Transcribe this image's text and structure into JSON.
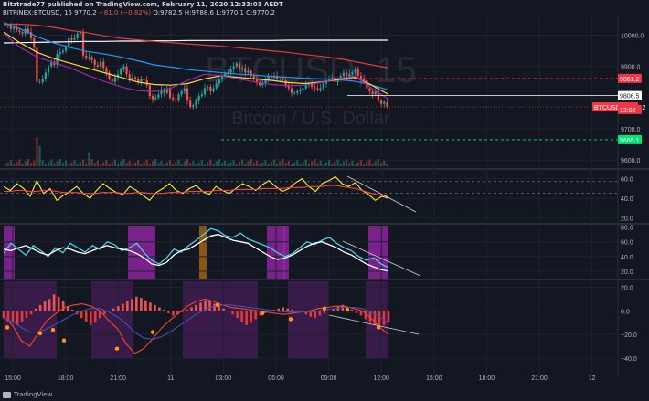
{
  "header": {
    "line1": "Bitztrade77 published on TradingView.com, February 11, 2020 12:33:01 AEDT",
    "symbol": "BITFINEX:BTCUSD",
    "interval": "15",
    "last": "9770.2",
    "change": "−81.0 (−0.82%)",
    "ohlc": "O:9782.5 H:9788.6 L:9770.1 C:9770.2"
  },
  "watermark": {
    "symbol": "BTCUSD, 15",
    "name": "Bitcoin / U.S. Dollar"
  },
  "price_labels": [
    {
      "text": "9861.2",
      "value": 9861.2,
      "color": "#f23645"
    },
    {
      "text": "9806.5",
      "value": 9806.5,
      "color": "#ffffff"
    },
    {
      "text": "BTCUSD · 9770.2",
      "value": 9770.2,
      "color": "#f23645"
    },
    {
      "text": "12:02",
      "value": 9762,
      "color": "#f23645"
    },
    {
      "text": "9665.1",
      "value": 9665.1,
      "color": "#00e676"
    }
  ],
  "footer": {
    "brand": "TradingView"
  },
  "colors": {
    "up": "#26a69a",
    "down": "#ef5350",
    "bg": "#131722",
    "grid": "#1e222d"
  },
  "chart_data": [
    {
      "type": "line",
      "panel": "price",
      "title": "",
      "ylim": [
        9580,
        10060
      ],
      "yticks": [
        9600,
        9700,
        9800,
        9900,
        10000
      ],
      "ytick_labels": [
        "9600.0",
        "9700.0",
        "9800.0",
        "9900.0",
        "10000.0"
      ],
      "x_tick_labels": [
        "15:00",
        "18:00",
        "21:00",
        "11",
        "03:00",
        "06:00",
        "09:00",
        "12:00",
        "15:00",
        "18:00",
        "21:00",
        "12"
      ],
      "ohlc_closes": [
        10030,
        10030,
        10020,
        10025,
        10015,
        10010,
        10005,
        10020,
        10010,
        9990,
        9960,
        9850,
        9850,
        9860,
        9880,
        9900,
        9915,
        9905,
        9940,
        9945,
        9950,
        9960,
        9990,
        9985,
        9990,
        10005,
        10010,
        9935,
        9925,
        9930,
        9920,
        9905,
        9900,
        9915,
        9895,
        9880,
        9860,
        9850,
        9865,
        9875,
        9890,
        9900,
        9875,
        9860,
        9865,
        9860,
        9850,
        9860,
        9855,
        9840,
        9805,
        9795,
        9800,
        9810,
        9825,
        9815,
        9830,
        9800,
        9795,
        9790,
        9810,
        9820,
        9830,
        9790,
        9770,
        9775,
        9790,
        9805,
        9810,
        9830,
        9835,
        9820,
        9830,
        9845,
        9860,
        9870,
        9875,
        9880,
        9890,
        9900,
        9910,
        9890,
        9895,
        9880,
        9885,
        9870,
        9860,
        9850,
        9840,
        9845,
        9860,
        9870,
        9865,
        9870,
        9860,
        9860,
        9855,
        9840,
        9830,
        9815,
        9815,
        9820,
        9825,
        9830,
        9840,
        9845,
        9835,
        9830,
        9825,
        9830,
        9845,
        9855,
        9860,
        9865,
        9850,
        9860,
        9870,
        9880,
        9870,
        9875,
        9880,
        9890,
        9870,
        9860,
        9855,
        9830,
        9820,
        9810,
        9820,
        9790,
        9780,
        9785,
        9770
      ],
      "series": [
        {
          "name": "",
          "color": "#ffffff",
          "values": [
            9975,
            9976,
            9977,
            9978,
            9979,
            9980,
            9980,
            9981,
            9981,
            9982,
            9982,
            9983,
            9983,
            9983,
            9983,
            9983,
            9983,
            9984,
            9984,
            9984,
            9984,
            9984,
            9984,
            9984
          ]
        },
        {
          "name": "",
          "color": "#e53935",
          "values": [
            10035,
            10035,
            10032,
            10025,
            10015,
            10008,
            9998,
            9990,
            9985,
            9980,
            9976,
            9972,
            9968,
            9965,
            9960,
            9955,
            9950,
            9945,
            9938,
            9932,
            9925,
            9915,
            9905,
            9895
          ]
        },
        {
          "name": "",
          "color": "#2196f3",
          "values": [
            10040,
            10020,
            9995,
            9975,
            9960,
            9948,
            9940,
            9930,
            9918,
            9905,
            9898,
            9890,
            9885,
            9880,
            9875,
            9872,
            9868,
            9865,
            9862,
            9860,
            9858,
            9852,
            9840,
            9825
          ]
        },
        {
          "name": "",
          "color": "#fdd835",
          "values": [
            10010,
            9975,
            9945,
            9925,
            9910,
            9895,
            9880,
            9865,
            9850,
            9842,
            9840,
            9845,
            9860,
            9870,
            9865,
            9860,
            9855,
            9848,
            9845,
            9850,
            9858,
            9865,
            9840,
            9810
          ]
        },
        {
          "name": "",
          "color": "#9c27b0",
          "values": [
            10005,
            9960,
            9930,
            9912,
            9895,
            9872,
            9852,
            9835,
            9822,
            9820,
            9830,
            9855,
            9875,
            9870,
            9860,
            9850,
            9842,
            9838,
            9840,
            9848,
            9862,
            9870,
            9830,
            9795
          ]
        }
      ]
    },
    {
      "type": "line",
      "panel": "rsi",
      "ylim": [
        15,
        68
      ],
      "yticks": [
        20,
        40,
        60
      ],
      "ytick_labels": [
        "20.0",
        "40.0",
        "60.0"
      ],
      "series": [
        {
          "name": "",
          "color": "#ffeb3b",
          "values": [
            52,
            48,
            55,
            50,
            42,
            58,
            45,
            50,
            38,
            43,
            47,
            52,
            45,
            40,
            48,
            55,
            50,
            46,
            44,
            52,
            48,
            43,
            38,
            46,
            50,
            55,
            48,
            45,
            50,
            53,
            47,
            44,
            52,
            48,
            45,
            50,
            55,
            52,
            48,
            54,
            58,
            52,
            47,
            50,
            56,
            60,
            52,
            47,
            55,
            58,
            62,
            55,
            52,
            56,
            48,
            44,
            38,
            42,
            40
          ]
        },
        {
          "name": "",
          "color": "#f44336",
          "values": [
            47,
            47,
            48,
            48,
            47,
            47,
            48,
            48,
            47,
            46,
            46,
            46,
            45,
            45,
            45,
            46,
            46,
            46,
            45,
            45,
            46,
            46,
            45,
            45,
            45,
            46,
            46,
            46,
            47,
            47,
            47,
            47,
            48,
            48,
            48,
            49,
            49,
            49,
            49,
            50,
            50,
            50,
            50,
            51,
            51,
            51,
            52,
            52,
            52,
            53,
            53,
            52,
            51,
            50,
            48,
            46,
            44,
            43,
            42
          ]
        }
      ]
    },
    {
      "type": "line",
      "panel": "stoch",
      "ylim": [
        10,
        82
      ],
      "yticks": [
        20,
        40,
        60,
        80
      ],
      "ytick_labels": [
        "20.0",
        "40.0",
        "60.0",
        "80.0"
      ],
      "series": [
        {
          "name": "",
          "color": "#4dd0e1",
          "values": [
            45,
            58,
            50,
            42,
            55,
            48,
            40,
            52,
            45,
            58,
            52,
            46,
            55,
            50,
            60,
            56,
            48,
            52,
            58,
            45,
            35,
            30,
            38,
            50,
            46,
            55,
            62,
            70,
            78,
            75,
            68,
            66,
            72,
            64,
            60,
            56,
            52,
            45,
            40,
            44,
            52,
            60,
            56,
            62,
            66,
            58,
            52,
            48,
            40,
            35,
            38,
            30,
            25
          ]
        },
        {
          "name": "",
          "color": "#ffffff",
          "values": [
            50,
            48,
            52,
            55,
            50,
            45,
            42,
            48,
            52,
            50,
            46,
            44,
            48,
            52,
            55,
            52,
            50,
            48,
            44,
            38,
            30,
            28,
            32,
            42,
            48,
            50,
            56,
            62,
            68,
            70,
            66,
            62,
            60,
            58,
            52,
            46,
            40,
            36,
            38,
            42,
            48,
            54,
            58,
            60,
            56,
            52,
            46,
            42,
            36,
            30,
            26,
            22,
            20
          ]
        }
      ]
    },
    {
      "type": "bar",
      "panel": "macd",
      "ylim": [
        -50,
        25
      ],
      "yticks": [
        -40,
        -20,
        0,
        20
      ],
      "ytick_labels": [
        "−40.0",
        "−20.0",
        "0.0",
        "20.0"
      ],
      "histogram": [
        -6,
        -8,
        -10,
        -12,
        -9,
        -6,
        -3,
        2,
        5,
        8,
        10,
        14,
        12,
        8,
        4,
        1,
        -3,
        -6,
        -9,
        -12,
        -10,
        -6,
        -3,
        0,
        2,
        4,
        6,
        8,
        10,
        12,
        11,
        9,
        7,
        5,
        3,
        1,
        -2,
        -4,
        -3,
        -1,
        1,
        3,
        5,
        7,
        9,
        8,
        6,
        4,
        2,
        0,
        -3,
        -6,
        -9,
        -12,
        -10,
        -7,
        -4,
        -2,
        0,
        1,
        2,
        3,
        2,
        1,
        0,
        -1,
        -3,
        -5,
        -6,
        -4,
        -2,
        0,
        2,
        4,
        5,
        3,
        1,
        -2,
        -4,
        -7,
        -10,
        -12,
        -14,
        -12,
        -10
      ],
      "series": [
        {
          "name": "",
          "color": "#f44336",
          "values": [
            -5,
            -12,
            -25,
            -30,
            -18,
            -8,
            -2,
            3,
            5,
            6,
            4,
            0,
            -8,
            -15,
            -28,
            -36,
            -32,
            -24,
            -15,
            -8,
            -2,
            4,
            8,
            10,
            8,
            5,
            3,
            2,
            1,
            0,
            -1,
            -2,
            -3,
            -2,
            -1,
            0,
            2,
            3,
            4,
            4,
            2,
            0,
            -6,
            -14,
            -20
          ]
        },
        {
          "name": "",
          "color": "#3f51b5",
          "values": [
            -6,
            -9,
            -14,
            -18,
            -18,
            -15,
            -11,
            -7,
            -3,
            0,
            2,
            2,
            -1,
            -5,
            -11,
            -18,
            -23,
            -24,
            -22,
            -18,
            -13,
            -8,
            -3,
            1,
            4,
            5,
            5,
            4,
            3,
            2,
            1,
            0,
            -1,
            -1,
            -1,
            -1,
            0,
            1,
            2,
            3,
            3,
            2,
            -1,
            -5,
            -10
          ]
        }
      ]
    }
  ]
}
